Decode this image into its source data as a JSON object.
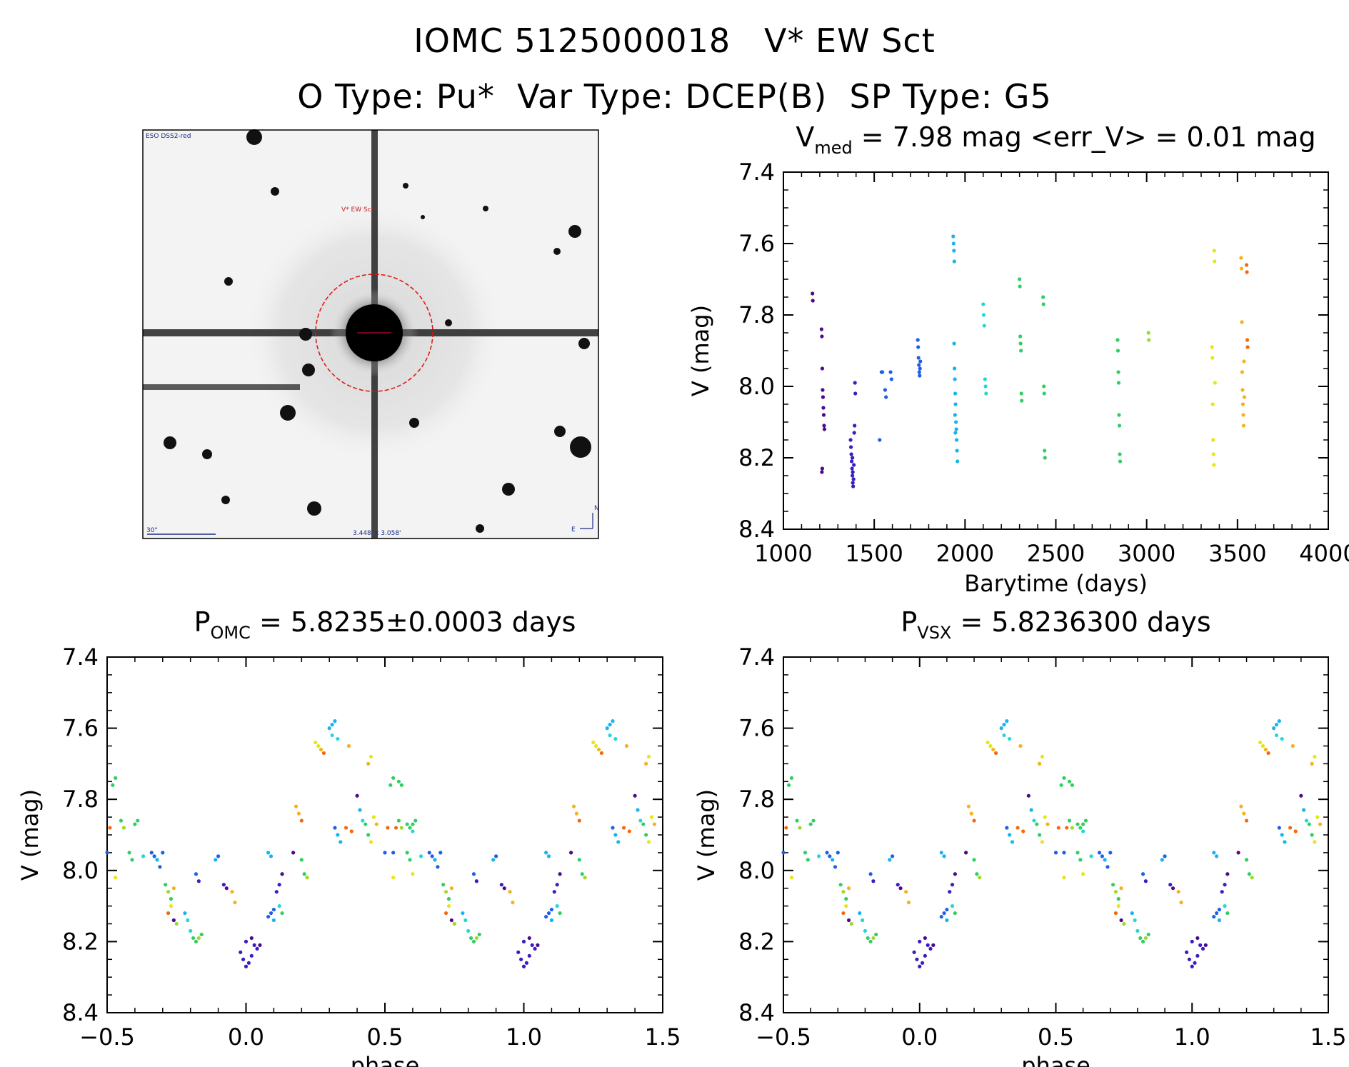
{
  "titles": {
    "line1": "IOMC 5125000018   V* EW Sct",
    "line2": "O Type: Pu*  Var Type: DCEP(B)  SP Type: G5"
  },
  "finder": {
    "survey_label": "ESO DSS2-red",
    "target_label": "V* EW Sct",
    "scale_label": "30\"",
    "fov_label": "3.448' x 3.058'",
    "north_label": "N",
    "east_label": "E"
  },
  "palette": [
    "#4b0a8c",
    "#3a1dc0",
    "#1f5fe6",
    "#17b4ee",
    "#22d8d6",
    "#2fcf62",
    "#9ed92a",
    "#e6e617",
    "#f5b21a",
    "#f06a12"
  ],
  "chart_data": [
    {
      "id": "lightcurve",
      "type": "scatter",
      "title": "V_med = 7.98 mag <err_V> = 0.01 mag",
      "title_parts": {
        "pre": "V",
        "sub": "med",
        "post": " = 7.98 mag <err_V> = 0.01 mag"
      },
      "xlabel": "Barytime (days)",
      "ylabel": "V (mag)",
      "xlim": [
        1000,
        4000
      ],
      "ylim": [
        8.4,
        7.4
      ],
      "xticks": [
        1000,
        1500,
        2000,
        2500,
        3000,
        3500,
        4000
      ],
      "xtick_labels": [
        "1000",
        "1500",
        "2000",
        "2500",
        "3000",
        "3500",
        "4000"
      ],
      "yticks": [
        7.4,
        7.6,
        7.8,
        8.0,
        8.2,
        8.4
      ],
      "ytick_labels": [
        "7.4",
        "7.6",
        "7.8",
        "8.0",
        "8.2",
        "8.4"
      ],
      "points": [
        [
          1160,
          7.74,
          0
        ],
        [
          1162,
          7.76,
          0
        ],
        [
          1210,
          7.84,
          0
        ],
        [
          1212,
          7.86,
          0
        ],
        [
          1214,
          7.95,
          0
        ],
        [
          1216,
          8.01,
          0
        ],
        [
          1218,
          8.03,
          0
        ],
        [
          1220,
          8.06,
          0
        ],
        [
          1222,
          8.08,
          0
        ],
        [
          1224,
          8.11,
          0
        ],
        [
          1226,
          8.12,
          0
        ],
        [
          1212,
          8.24,
          0
        ],
        [
          1214,
          8.23,
          0
        ],
        [
          1370,
          8.15,
          1
        ],
        [
          1372,
          8.17,
          1
        ],
        [
          1374,
          8.19,
          1
        ],
        [
          1376,
          8.21,
          1
        ],
        [
          1378,
          8.23,
          1
        ],
        [
          1380,
          8.25,
          1
        ],
        [
          1382,
          8.27,
          1
        ],
        [
          1384,
          8.28,
          1
        ],
        [
          1386,
          8.26,
          1
        ],
        [
          1388,
          8.22,
          1
        ],
        [
          1390,
          8.13,
          1
        ],
        [
          1392,
          8.11,
          1
        ],
        [
          1394,
          7.99,
          1
        ],
        [
          1396,
          8.02,
          1
        ],
        [
          1380,
          8.2,
          1
        ],
        [
          1382,
          8.24,
          1
        ],
        [
          1530,
          8.15,
          2
        ],
        [
          1540,
          7.96,
          2
        ],
        [
          1545,
          7.96,
          2
        ],
        [
          1560,
          8.01,
          2
        ],
        [
          1565,
          8.03,
          2
        ],
        [
          1590,
          7.96,
          2
        ],
        [
          1595,
          7.98,
          2
        ],
        [
          1740,
          7.87,
          2
        ],
        [
          1742,
          7.89,
          2
        ],
        [
          1744,
          7.92,
          2
        ],
        [
          1746,
          7.94,
          2
        ],
        [
          1748,
          7.96,
          2
        ],
        [
          1750,
          7.97,
          2
        ],
        [
          1752,
          7.95,
          2
        ],
        [
          1754,
          7.93,
          2
        ],
        [
          1935,
          7.58,
          3
        ],
        [
          1937,
          7.6,
          3
        ],
        [
          1939,
          7.62,
          3
        ],
        [
          1941,
          7.65,
          3
        ],
        [
          1940,
          7.88,
          3
        ],
        [
          1942,
          7.95,
          3
        ],
        [
          1944,
          7.98,
          3
        ],
        [
          1946,
          8.02,
          3
        ],
        [
          1948,
          8.05,
          3
        ],
        [
          1950,
          8.1,
          3
        ],
        [
          1952,
          8.12,
          3
        ],
        [
          1954,
          8.15,
          3
        ],
        [
          1956,
          8.18,
          3
        ],
        [
          1958,
          8.21,
          3
        ],
        [
          1945,
          8.08,
          3
        ],
        [
          1947,
          8.13,
          3
        ],
        [
          2100,
          7.77,
          4
        ],
        [
          2103,
          7.8,
          4
        ],
        [
          2106,
          7.83,
          4
        ],
        [
          2110,
          7.98,
          4
        ],
        [
          2113,
          8.0,
          4
        ],
        [
          2116,
          8.02,
          4
        ],
        [
          2300,
          7.7,
          5
        ],
        [
          2302,
          7.72,
          5
        ],
        [
          2304,
          7.86,
          5
        ],
        [
          2306,
          7.88,
          5
        ],
        [
          2308,
          7.9,
          5
        ],
        [
          2310,
          8.02,
          5
        ],
        [
          2312,
          8.04,
          5
        ],
        [
          2430,
          7.75,
          5
        ],
        [
          2432,
          7.77,
          5
        ],
        [
          2434,
          8.0,
          5
        ],
        [
          2436,
          8.02,
          5
        ],
        [
          2438,
          8.18,
          5
        ],
        [
          2440,
          8.2,
          5
        ],
        [
          2840,
          7.87,
          5
        ],
        [
          2842,
          7.9,
          5
        ],
        [
          2844,
          7.96,
          5
        ],
        [
          2846,
          7.99,
          5
        ],
        [
          2848,
          8.08,
          5
        ],
        [
          2850,
          8.11,
          5
        ],
        [
          2852,
          8.19,
          5
        ],
        [
          2854,
          8.21,
          5
        ],
        [
          3010,
          7.85,
          6
        ],
        [
          3012,
          7.87,
          6
        ],
        [
          3360,
          7.89,
          7
        ],
        [
          3362,
          7.92,
          7
        ],
        [
          3364,
          8.05,
          7
        ],
        [
          3366,
          8.15,
          7
        ],
        [
          3368,
          8.19,
          7
        ],
        [
          3370,
          8.22,
          7
        ],
        [
          3372,
          7.62,
          7
        ],
        [
          3374,
          7.65,
          7
        ],
        [
          3376,
          7.99,
          7
        ],
        [
          3520,
          7.64,
          8
        ],
        [
          3522,
          7.67,
          8
        ],
        [
          3524,
          7.82,
          8
        ],
        [
          3526,
          7.96,
          8
        ],
        [
          3528,
          8.01,
          8
        ],
        [
          3530,
          8.05,
          8
        ],
        [
          3532,
          8.08,
          8
        ],
        [
          3534,
          8.11,
          8
        ],
        [
          3536,
          7.93,
          8
        ],
        [
          3538,
          8.03,
          8
        ],
        [
          3550,
          7.66,
          9
        ],
        [
          3552,
          7.68,
          9
        ],
        [
          3554,
          7.87,
          9
        ],
        [
          3556,
          7.89,
          9
        ]
      ]
    },
    {
      "id": "phase-omc",
      "type": "scatter",
      "title": "P_OMC = 5.8235±0.0003 days",
      "title_parts": {
        "pre": "P",
        "sub": "OMC",
        "post": " = 5.8235±0.0003 days"
      },
      "xlabel": "phase",
      "ylabel": "V (mag)",
      "xlim": [
        -0.5,
        1.5
      ],
      "ylim": [
        8.4,
        7.4
      ],
      "xticks": [
        -0.5,
        0.0,
        0.5,
        1.0,
        1.5
      ],
      "xtick_labels": [
        "−0.5",
        "0.0",
        "0.5",
        "1.0",
        "1.5"
      ],
      "yticks": [
        7.4,
        7.6,
        7.8,
        8.0,
        8.2,
        8.4
      ],
      "ytick_labels": [
        "7.4",
        "7.6",
        "7.8",
        "8.0",
        "8.2",
        "8.4"
      ],
      "points": [
        [
          -0.02,
          8.23,
          1
        ],
        [
          -0.01,
          8.25,
          1
        ],
        [
          0.0,
          8.27,
          1
        ],
        [
          0.01,
          8.26,
          1
        ],
        [
          0.02,
          8.24,
          1
        ],
        [
          0.03,
          8.21,
          1
        ],
        [
          0.04,
          8.22,
          1
        ],
        [
          0.0,
          8.2,
          1
        ],
        [
          0.02,
          8.19,
          0
        ],
        [
          0.05,
          8.21,
          0
        ],
        [
          0.08,
          8.13,
          2
        ],
        [
          0.09,
          8.12,
          2
        ],
        [
          0.1,
          8.11,
          2
        ],
        [
          0.11,
          8.06,
          1
        ],
        [
          0.12,
          8.04,
          1
        ],
        [
          0.13,
          8.01,
          0
        ],
        [
          0.08,
          7.95,
          3
        ],
        [
          0.09,
          7.96,
          3
        ],
        [
          0.1,
          8.14,
          3
        ],
        [
          0.12,
          8.1,
          4
        ],
        [
          0.13,
          8.12,
          5
        ],
        [
          0.17,
          7.95,
          0
        ],
        [
          0.2,
          7.97,
          5
        ],
        [
          0.21,
          8.01,
          5
        ],
        [
          0.22,
          8.02,
          6
        ],
        [
          0.18,
          7.82,
          8
        ],
        [
          0.19,
          7.84,
          8
        ],
        [
          0.2,
          7.86,
          9
        ],
        [
          0.25,
          7.64,
          7
        ],
        [
          0.26,
          7.65,
          7
        ],
        [
          0.27,
          7.66,
          8
        ],
        [
          0.28,
          7.67,
          9
        ],
        [
          0.3,
          7.6,
          3
        ],
        [
          0.31,
          7.59,
          3
        ],
        [
          0.32,
          7.58,
          3
        ],
        [
          0.31,
          7.62,
          4
        ],
        [
          0.33,
          7.63,
          4
        ],
        [
          0.32,
          7.88,
          2
        ],
        [
          0.33,
          7.9,
          3
        ],
        [
          0.34,
          7.92,
          3
        ],
        [
          0.36,
          7.88,
          9
        ],
        [
          0.38,
          7.89,
          9
        ],
        [
          0.37,
          7.65,
          8
        ],
        [
          0.4,
          7.79,
          0
        ],
        [
          0.41,
          7.83,
          3
        ],
        [
          0.42,
          7.86,
          4
        ],
        [
          0.43,
          7.87,
          5
        ],
        [
          0.44,
          7.9,
          5
        ],
        [
          0.45,
          7.92,
          7
        ],
        [
          0.44,
          7.7,
          8
        ],
        [
          0.45,
          7.68,
          7
        ],
        [
          0.46,
          7.85,
          7
        ],
        [
          0.47,
          7.87,
          8
        ],
        [
          0.53,
          7.95,
          2
        ],
        [
          0.54,
          7.88,
          9
        ],
        [
          0.55,
          7.75,
          5
        ],
        [
          0.56,
          7.76,
          5
        ],
        [
          0.58,
          7.87,
          5
        ],
        [
          0.59,
          7.88,
          5
        ],
        [
          0.6,
          7.89,
          4
        ],
        [
          0.6,
          8.01,
          7
        ],
        [
          -0.47,
          8.02,
          7
        ],
        [
          -0.45,
          7.86,
          5
        ],
        [
          -0.44,
          7.88,
          6
        ],
        [
          -0.42,
          7.95,
          5
        ],
        [
          -0.41,
          7.97,
          5
        ],
        [
          -0.5,
          7.95,
          2
        ],
        [
          -0.49,
          7.88,
          9
        ],
        [
          -0.48,
          7.76,
          5
        ],
        [
          -0.47,
          7.74,
          5
        ],
        [
          -0.4,
          7.87,
          5
        ],
        [
          -0.39,
          7.86,
          5
        ],
        [
          -0.37,
          7.96,
          4
        ],
        [
          -0.34,
          7.95,
          2
        ],
        [
          -0.33,
          7.96,
          2
        ],
        [
          -0.32,
          7.97,
          3
        ],
        [
          -0.31,
          7.99,
          2
        ],
        [
          -0.3,
          7.95,
          2
        ],
        [
          -0.29,
          8.04,
          5
        ],
        [
          -0.28,
          8.06,
          6
        ],
        [
          -0.27,
          8.08,
          5
        ],
        [
          -0.26,
          8.05,
          8
        ],
        [
          -0.27,
          8.1,
          7
        ],
        [
          -0.28,
          8.12,
          9
        ],
        [
          -0.26,
          8.14,
          0
        ],
        [
          -0.25,
          8.15,
          6
        ],
        [
          -0.22,
          8.12,
          3
        ],
        [
          -0.21,
          8.14,
          4
        ],
        [
          -0.2,
          8.17,
          4
        ],
        [
          -0.19,
          8.19,
          5
        ],
        [
          -0.18,
          8.2,
          5
        ],
        [
          -0.17,
          8.19,
          6
        ],
        [
          -0.16,
          8.18,
          5
        ],
        [
          -0.18,
          8.01,
          2
        ],
        [
          -0.17,
          8.03,
          1
        ],
        [
          -0.1,
          7.96,
          2
        ],
        [
          -0.11,
          7.97,
          3
        ],
        [
          -0.08,
          8.04,
          1
        ],
        [
          -0.07,
          8.05,
          0
        ],
        [
          -0.05,
          8.06,
          8
        ],
        [
          -0.04,
          8.09,
          8
        ]
      ]
    },
    {
      "id": "phase-vsx",
      "type": "scatter",
      "title": "P_VSX = 5.8236300 days",
      "title_parts": {
        "pre": "P",
        "sub": "VSX",
        "post": " = 5.8236300 days"
      },
      "xlabel": "phase",
      "ylabel": "V (mag)",
      "xlim": [
        -0.5,
        1.5
      ],
      "ylim": [
        8.4,
        7.4
      ],
      "xticks": [
        -0.5,
        0.0,
        0.5,
        1.0,
        1.5
      ],
      "xtick_labels": [
        "−0.5",
        "0.0",
        "0.5",
        "1.0",
        "1.5"
      ],
      "yticks": [
        7.4,
        7.6,
        7.8,
        8.0,
        8.2,
        8.4
      ],
      "ytick_labels": [
        "7.4",
        "7.6",
        "7.8",
        "8.0",
        "8.2",
        "8.4"
      ],
      "points_same_as": "phase-omc"
    }
  ]
}
